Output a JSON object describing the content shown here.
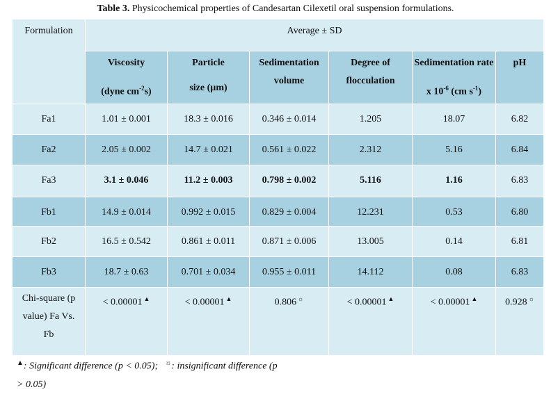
{
  "caption": {
    "label": "Table 3.",
    "text": "Physicochemical properties of Candesartan Cilexetil oral suspension formulations."
  },
  "table": {
    "formulation_header": "Formulation",
    "group_header": "Average ± SD",
    "columns": [
      {
        "line1": "Viscosity",
        "line2": "(dyne cm-2s)"
      },
      {
        "line1": "Particle",
        "line2": "size (µm)"
      },
      {
        "line1": "Sedimentation",
        "line2": "volume"
      },
      {
        "line1": "Degree of",
        "line2": "flocculation"
      },
      {
        "line1": "Sedimentation rate",
        "line2": "x 10-6 (cm s-1)"
      },
      {
        "line1": "pH",
        "line2": ""
      }
    ],
    "rows": [
      {
        "name": "Fa1",
        "values": [
          "1.01 ± 0.001",
          "18.3 ± 0.016",
          "0.346 ± 0.014",
          "1.205",
          "18.07",
          "6.82"
        ]
      },
      {
        "name": "Fa2",
        "values": [
          "2.05 ± 0.002",
          "14.7 ± 0.021",
          "0.561 ± 0.022",
          "2.312",
          "5.16",
          "6.84"
        ]
      },
      {
        "name": "Fa3",
        "values": [
          "3.1 ± 0.046",
          "11.2 ± 0.003",
          "0.798 ± 0.002",
          "5.116",
          "1.16",
          "6.83"
        ]
      },
      {
        "name": "Fb1",
        "values": [
          "14.9 ± 0.014",
          "0.992 ± 0.015",
          "0.829 ± 0.004",
          "12.231",
          "0.53",
          "6.80"
        ]
      },
      {
        "name": "Fb2",
        "values": [
          "16.5 ± 0.542",
          "0.861 ± 0.011",
          "0.871 ± 0.006",
          "13.005",
          "0.14",
          "6.81"
        ]
      },
      {
        "name": "Fb3",
        "values": [
          "18.7 ± 0.63",
          "0.701 ± 0.034",
          "0.955 ± 0.011",
          "14.112",
          "0.08",
          "6.83"
        ]
      }
    ],
    "chi_row": {
      "name_lines": [
        "Chi-square (p",
        "value) Fa Vs.",
        "Fb"
      ],
      "values": [
        "< 0.00001",
        "< 0.00001",
        "0.806",
        "< 0.00001",
        "< 0.00001",
        "0.928"
      ],
      "marks": [
        "▲",
        "▲",
        "☼",
        "▲",
        "▲",
        "☼"
      ]
    }
  },
  "footnote": {
    "sig_symbol": "▲",
    "sig_text": ": Significant difference (p < 0.05);",
    "insig_symbol": "☼",
    "insig_text": ": insignificant difference (p > 0.05)"
  }
}
